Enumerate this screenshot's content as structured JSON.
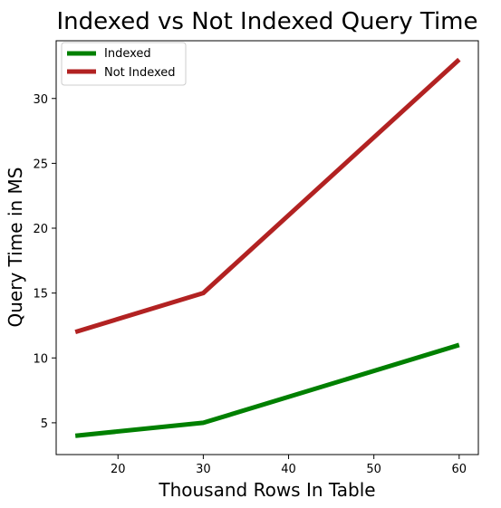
{
  "chart_data": {
    "type": "line",
    "title": "Indexed vs Not Indexed Query Time",
    "xlabel": "Thousand Rows In Table",
    "ylabel": "Query Time in MS",
    "x": [
      15,
      30,
      60
    ],
    "xlim": [
      12.75,
      62.25
    ],
    "ylim": [
      2.55,
      34.45
    ],
    "xticks": [
      20,
      30,
      40,
      50,
      60
    ],
    "yticks": [
      5,
      10,
      15,
      20,
      25,
      30
    ],
    "series": [
      {
        "name": "Indexed",
        "values": [
          4,
          5,
          11
        ],
        "color": "#008000"
      },
      {
        "name": "Not Indexed",
        "values": [
          12,
          15,
          33
        ],
        "color": "#b22222"
      }
    ],
    "grid": false,
    "legend": "top-left"
  }
}
